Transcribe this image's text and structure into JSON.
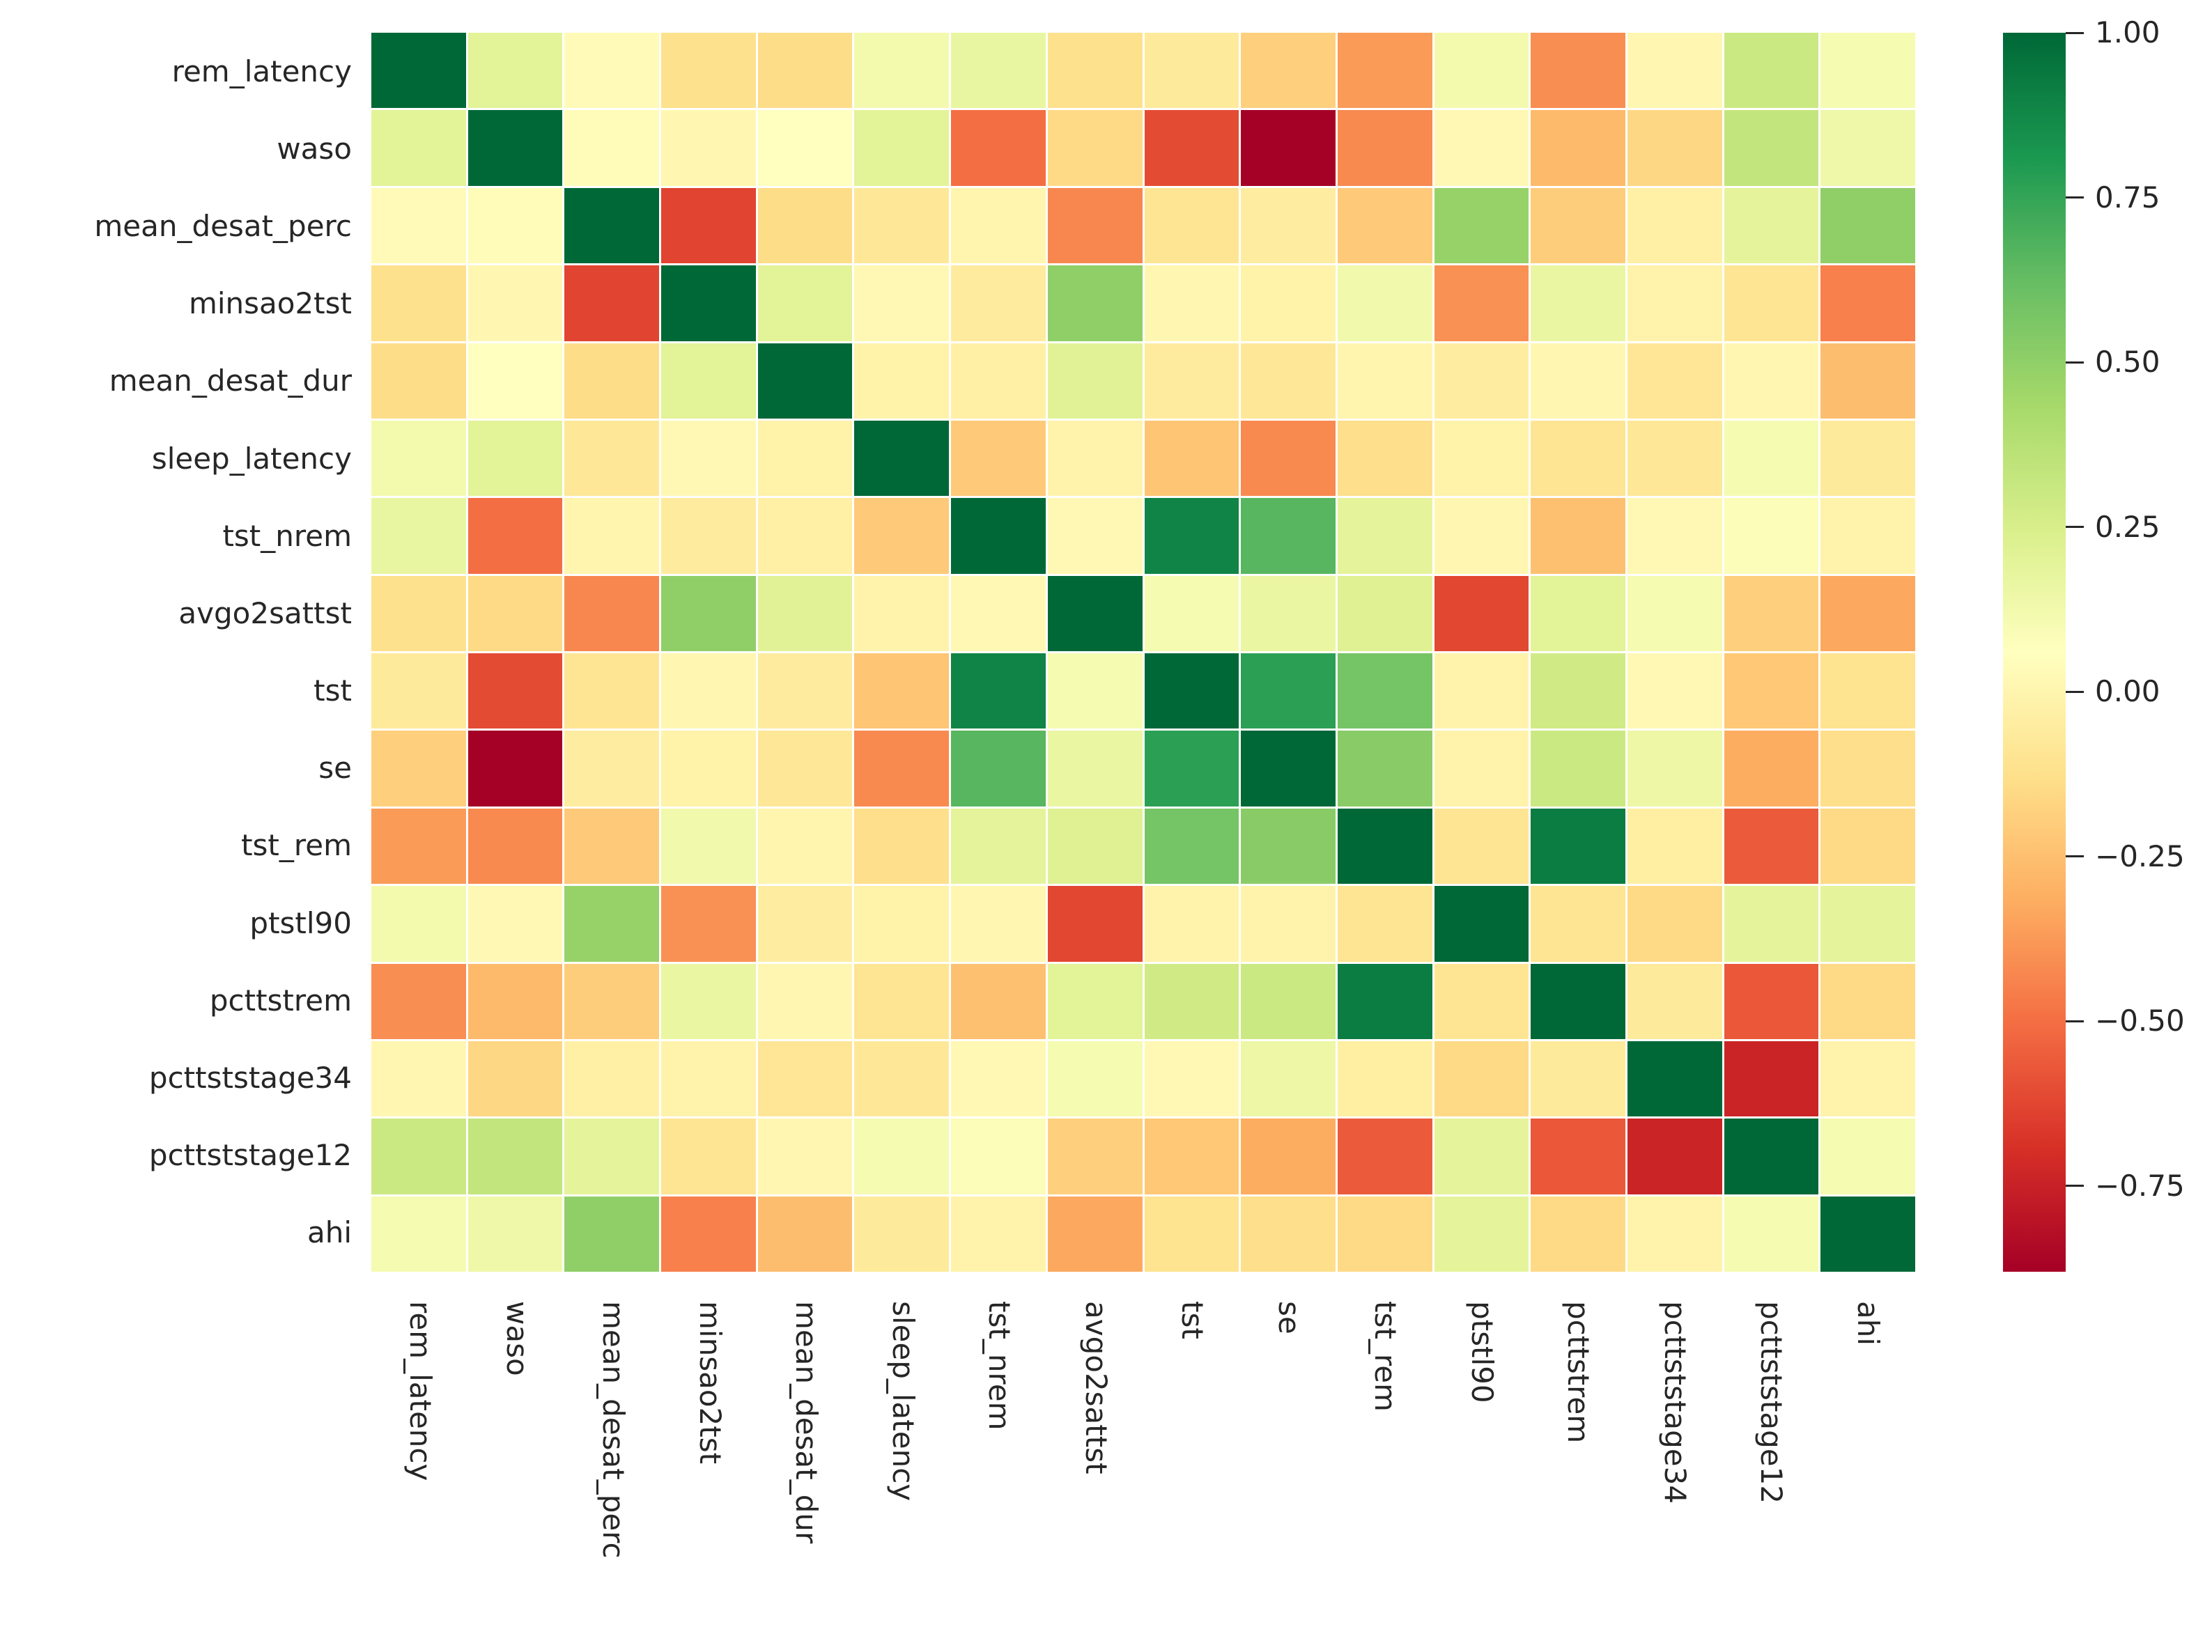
{
  "figure": {
    "background": "#ffffff",
    "text_color": "#262626"
  },
  "chart_data": {
    "type": "heatmap",
    "title": "",
    "variables": [
      "rem_latency",
      "waso",
      "mean_desat_perc",
      "minsao2tst",
      "mean_desat_dur",
      "sleep_latency",
      "tst_nrem",
      "avgo2sattst",
      "tst",
      "se",
      "tst_rem",
      "ptstl90",
      "pcttstrem",
      "pcttststage34",
      "pcttststage12",
      "ahi"
    ],
    "matrix": [
      [
        1.0,
        0.2,
        0.03,
        -0.12,
        -0.14,
        0.12,
        0.17,
        -0.12,
        -0.07,
        -0.19,
        -0.37,
        0.12,
        -0.41,
        0.01,
        0.3,
        0.11
      ],
      [
        0.2,
        1.0,
        0.04,
        0.01,
        0.06,
        0.2,
        -0.5,
        -0.15,
        -0.61,
        -0.88,
        -0.42,
        0.02,
        -0.27,
        -0.16,
        0.33,
        0.14
      ],
      [
        0.03,
        0.04,
        1.0,
        -0.63,
        -0.14,
        -0.08,
        0.0,
        -0.43,
        -0.1,
        -0.05,
        -0.21,
        0.48,
        -0.2,
        -0.03,
        0.19,
        0.5
      ],
      [
        -0.12,
        0.01,
        -0.63,
        1.0,
        0.2,
        0.02,
        -0.06,
        0.5,
        0.01,
        -0.02,
        0.13,
        -0.4,
        0.16,
        -0.01,
        -0.1,
        -0.45
      ],
      [
        -0.14,
        0.06,
        -0.14,
        0.2,
        1.0,
        -0.02,
        -0.03,
        0.21,
        -0.06,
        -0.08,
        0.0,
        -0.05,
        0.01,
        -0.09,
        0.01,
        -0.26
      ],
      [
        0.12,
        0.2,
        -0.08,
        0.02,
        -0.02,
        1.0,
        -0.21,
        -0.01,
        -0.23,
        -0.42,
        -0.13,
        -0.02,
        -0.1,
        -0.08,
        0.11,
        -0.07
      ],
      [
        0.17,
        -0.5,
        0.0,
        -0.06,
        -0.03,
        -0.21,
        1.0,
        0.02,
        0.89,
        0.66,
        0.19,
        0.01,
        -0.25,
        0.02,
        0.08,
        -0.01
      ],
      [
        -0.12,
        -0.15,
        -0.43,
        0.5,
        0.21,
        -0.01,
        0.02,
        1.0,
        0.11,
        0.16,
        0.22,
        -0.62,
        0.2,
        0.11,
        -0.19,
        -0.33
      ],
      [
        -0.07,
        -0.61,
        -0.1,
        0.01,
        -0.06,
        -0.23,
        0.89,
        0.11,
        1.0,
        0.77,
        0.58,
        -0.01,
        0.28,
        0.02,
        -0.22,
        -0.11
      ],
      [
        -0.19,
        -0.88,
        -0.05,
        -0.02,
        -0.08,
        -0.42,
        0.66,
        0.16,
        0.77,
        1.0,
        0.52,
        -0.01,
        0.3,
        0.15,
        -0.32,
        -0.13
      ],
      [
        -0.37,
        -0.42,
        -0.21,
        0.13,
        0.0,
        -0.13,
        0.19,
        0.22,
        0.58,
        0.52,
        1.0,
        -0.1,
        0.92,
        -0.04,
        -0.56,
        -0.15
      ],
      [
        0.12,
        0.02,
        0.48,
        -0.4,
        -0.05,
        -0.02,
        0.01,
        -0.62,
        -0.01,
        -0.01,
        -0.1,
        1.0,
        -0.1,
        -0.15,
        0.19,
        0.19
      ],
      [
        -0.41,
        -0.27,
        -0.2,
        0.16,
        0.01,
        -0.1,
        -0.25,
        0.2,
        0.28,
        0.3,
        0.92,
        -0.1,
        1.0,
        -0.07,
        -0.57,
        -0.15
      ],
      [
        0.01,
        -0.16,
        -0.03,
        -0.01,
        -0.09,
        -0.08,
        0.02,
        0.11,
        0.02,
        0.15,
        -0.04,
        -0.15,
        -0.07,
        1.0,
        -0.74,
        -0.01
      ],
      [
        0.3,
        0.33,
        0.19,
        -0.1,
        0.01,
        0.11,
        0.08,
        -0.19,
        -0.22,
        -0.32,
        -0.56,
        0.19,
        -0.57,
        -0.74,
        1.0,
        0.11
      ],
      [
        0.11,
        0.14,
        0.5,
        -0.45,
        -0.26,
        -0.07,
        -0.01,
        -0.33,
        -0.11,
        -0.13,
        -0.15,
        0.19,
        -0.15,
        -0.01,
        0.11,
        1.0
      ]
    ],
    "colormap": {
      "name": "RdYlGn",
      "stops": [
        "#a50026",
        "#d73027",
        "#f46d43",
        "#fdae61",
        "#fee08b",
        "#ffffbf",
        "#d9ef8b",
        "#a6d96a",
        "#66bd63",
        "#1a9850",
        "#006837"
      ]
    },
    "vmin": -0.88,
    "vmax": 1.0,
    "grid_gap_color": "#ffffff",
    "legend_position": "right",
    "colorbar": {
      "tick_labels": [
        "1.00",
        "0.75",
        "0.50",
        "0.25",
        "0.00",
        "−0.25",
        "−0.50",
        "−0.75"
      ],
      "tick_values": [
        1.0,
        0.75,
        0.5,
        0.25,
        0.0,
        -0.25,
        -0.5,
        -0.75
      ]
    }
  }
}
